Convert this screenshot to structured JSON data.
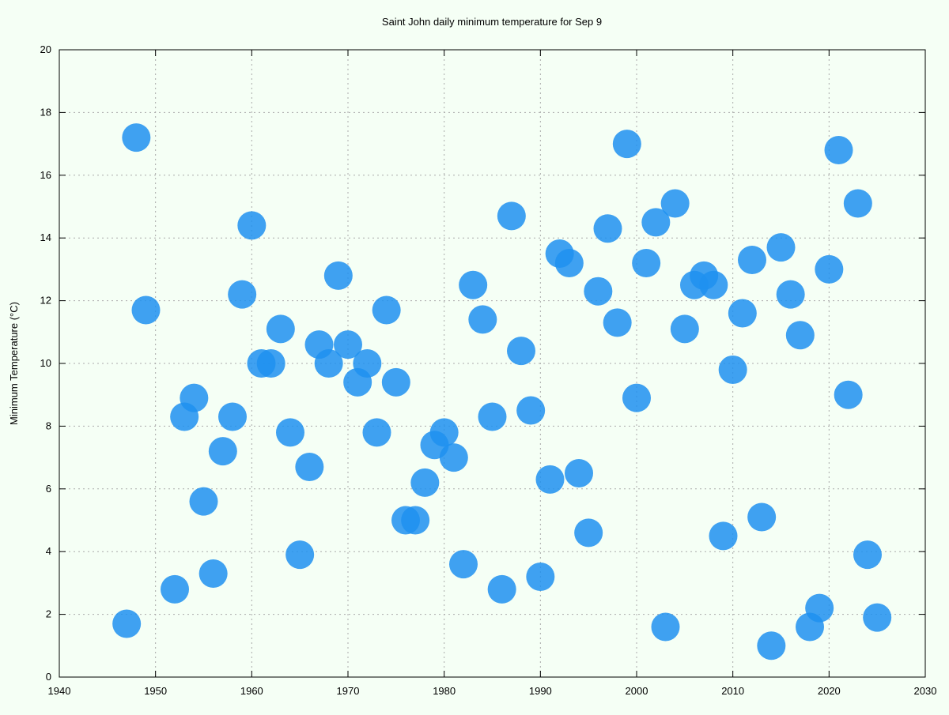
{
  "chart_data": {
    "type": "scatter",
    "title": "Saint John daily minimum temperature for Sep 9",
    "y_label": "Minimum Temperature (°C)",
    "xlim": [
      1940,
      2030
    ],
    "xticks": [
      1940,
      1950,
      1960,
      1970,
      1980,
      1990,
      2000,
      2010,
      2020,
      2030
    ],
    "ylim": [
      0,
      20
    ],
    "yticks": [
      0,
      2,
      4,
      6,
      8,
      10,
      12,
      14,
      16,
      18,
      20
    ],
    "grid": true,
    "color": "#1e90f0",
    "x": [
      1947,
      1948,
      1949,
      1952,
      1953,
      1954,
      1955,
      1956,
      1957,
      1958,
      1959,
      1960,
      1961,
      1962,
      1963,
      1964,
      1965,
      1966,
      1967,
      1968,
      1969,
      1970,
      1971,
      1972,
      1973,
      1974,
      1975,
      1976,
      1977,
      1978,
      1979,
      1980,
      1981,
      1982,
      1983,
      1984,
      1985,
      1986,
      1987,
      1988,
      1989,
      1990,
      1991,
      1992,
      1993,
      1994,
      1995,
      1996,
      1997,
      1998,
      1999,
      2000,
      2001,
      2002,
      2003,
      2004,
      2005,
      2006,
      2007,
      2008,
      2009,
      2010,
      2011,
      2012,
      2013,
      2014,
      2015,
      2016,
      2017,
      2018,
      2019,
      2020,
      2021,
      2022,
      2023,
      2024,
      2025
    ],
    "values": [
      1.7,
      17.2,
      11.7,
      2.8,
      8.3,
      8.9,
      5.6,
      3.3,
      7.2,
      8.3,
      12.2,
      14.4,
      10.0,
      10.0,
      11.1,
      7.8,
      3.9,
      6.7,
      10.6,
      10.0,
      12.8,
      10.6,
      9.4,
      10.0,
      7.8,
      11.7,
      9.4,
      5.0,
      5.0,
      6.2,
      7.4,
      7.8,
      7.0,
      3.6,
      12.5,
      11.4,
      8.3,
      2.8,
      14.7,
      10.4,
      8.5,
      3.2,
      6.3,
      13.5,
      13.2,
      6.5,
      4.6,
      12.3,
      14.3,
      11.3,
      17.0,
      8.9,
      13.2,
      14.5,
      1.6,
      15.1,
      11.1,
      12.5,
      12.8,
      12.5,
      4.5,
      9.8,
      11.6,
      13.3,
      5.1,
      1.0,
      13.7,
      12.2,
      10.9,
      1.6,
      2.2,
      13.0,
      16.8,
      9.0,
      15.1,
      3.9,
      1.9
    ]
  }
}
